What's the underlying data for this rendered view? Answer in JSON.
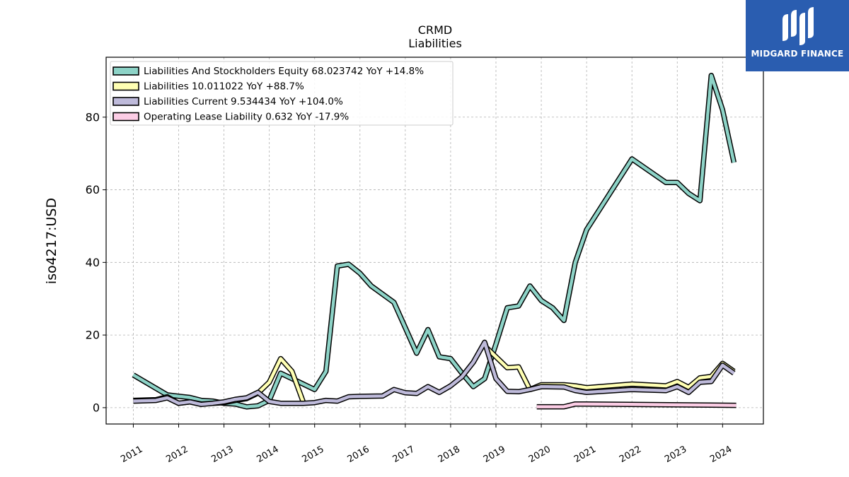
{
  "brand": {
    "name": "MIDGARD FINANCE",
    "color": "#2a5db0"
  },
  "chart_data": {
    "type": "line",
    "title": "CRMD",
    "subtitle": "Liabilities",
    "xlabel": "",
    "ylabel": "iso4217:USD",
    "xlim": [
      2010.4,
      2024.9
    ],
    "ylim": [
      -4.5,
      96.5
    ],
    "yticks": [
      0,
      20,
      40,
      60,
      80
    ],
    "xticks": [
      "2011",
      "2012",
      "2013",
      "2014",
      "2015",
      "2016",
      "2017",
      "2018",
      "2019",
      "2020",
      "2021",
      "2022",
      "2023",
      "2024"
    ],
    "grid": true,
    "legend_position": "top-left",
    "series": [
      {
        "name": "Liabilities And Stockholders Equity",
        "legend": "Liabilities And Stockholders Equity  68.023742 YoY +14.8%",
        "color": "#8dd3c7",
        "x": [
          2011.0,
          2011.75,
          2012.25,
          2012.5,
          2012.75,
          2013.0,
          2013.25,
          2013.5,
          2013.75,
          2014.0,
          2014.25,
          2014.5,
          2014.75,
          2015.0,
          2015.25,
          2015.5,
          2015.75,
          2016.0,
          2016.25,
          2016.75,
          2017.0,
          2017.25,
          2017.5,
          2017.75,
          2018.0,
          2018.25,
          2018.5,
          2018.75,
          2019.0,
          2019.25,
          2019.5,
          2019.75,
          2020.0,
          2020.25,
          2020.5,
          2020.75,
          2021.0,
          2022.0,
          2022.75,
          2023.0,
          2023.25,
          2023.5,
          2023.75,
          2024.0,
          2024.25
        ],
        "y": [
          9.0,
          3.5,
          2.8,
          2.0,
          1.8,
          1.2,
          1.0,
          0.2,
          0.5,
          2.0,
          9.5,
          8.0,
          6.5,
          5.0,
          10.0,
          39.0,
          39.5,
          37.0,
          33.5,
          29.0,
          22.0,
          15.0,
          21.5,
          14.0,
          13.5,
          9.5,
          5.8,
          8.0,
          17.5,
          27.5,
          28.0,
          33.5,
          29.5,
          27.5,
          24.0,
          40.0,
          49.0,
          68.5,
          62.0,
          62.0,
          59.0,
          57.0,
          91.5,
          82.0,
          67.5
        ]
      },
      {
        "name": "Liabilities",
        "legend": "Liabilities  10.011022 YoY +88.7%",
        "color": "#ffffb3",
        "segments": [
          {
            "x": [
              2011.0,
              2011.5,
              2011.75,
              2012.0,
              2012.25,
              2012.5,
              2012.75,
              2013.0,
              2013.25,
              2013.5,
              2013.75,
              2014.0,
              2014.25,
              2014.5,
              2014.75
            ],
            "y": [
              2.0,
              2.2,
              3.0,
              1.2,
              1.6,
              1.0,
              1.2,
              1.4,
              2.0,
              2.5,
              4.0,
              7.0,
              13.5,
              10.0,
              1.5
            ]
          },
          {
            "x": [
              2018.75,
              2019.0,
              2019.25,
              2019.5,
              2019.75
            ],
            "y": [
              17.0,
              14.0,
              11.0,
              11.2,
              5.0
            ]
          },
          {
            "x": [
              2019.75,
              2020.0,
              2020.5,
              2020.75,
              2021.0,
              2022.0,
              2022.75,
              2023.0,
              2023.25,
              2023.5,
              2023.75,
              2024.0,
              2024.25
            ],
            "y": [
              5.0,
              6.3,
              6.3,
              6.0,
              5.5,
              6.5,
              6.0,
              7.2,
              5.6,
              8.2,
              8.6,
              12.2,
              10.0
            ]
          }
        ]
      },
      {
        "name": "Liabilities Current",
        "legend": "Liabilities Current  9.534434 YoY +104.0%",
        "color": "#bebada",
        "x": [
          2011.0,
          2011.5,
          2011.75,
          2012.0,
          2012.25,
          2012.5,
          2012.75,
          2013.0,
          2013.25,
          2013.5,
          2013.75,
          2014.0,
          2014.25,
          2014.5,
          2014.75,
          2015.0,
          2015.25,
          2015.5,
          2015.75,
          2016.0,
          2016.5,
          2016.75,
          2017.0,
          2017.25,
          2017.5,
          2017.75,
          2018.0,
          2018.25,
          2018.5,
          2018.75,
          2019.0,
          2019.25,
          2019.5,
          2019.75,
          2020.0,
          2020.5,
          2020.75,
          2021.0,
          2022.0,
          2022.75,
          2023.0,
          2023.25,
          2023.5,
          2023.75,
          2024.0,
          2024.25
        ],
        "y": [
          1.8,
          2.0,
          2.7,
          1.2,
          1.6,
          0.9,
          1.2,
          1.6,
          2.3,
          2.7,
          4.2,
          1.7,
          1.2,
          1.2,
          1.2,
          1.4,
          2.0,
          1.8,
          3.0,
          3.1,
          3.2,
          5.0,
          4.1,
          3.9,
          5.8,
          4.2,
          6.0,
          8.5,
          12.5,
          18.0,
          8.0,
          4.5,
          4.4,
          5.0,
          5.8,
          5.7,
          4.7,
          4.2,
          5.0,
          4.7,
          5.8,
          4.2,
          7.0,
          7.2,
          11.7,
          9.5
        ]
      },
      {
        "name": "Operating Lease Liability",
        "legend": "Operating Lease Liability  0.632 YoY -17.9%",
        "color": "#fccde5",
        "x": [
          2019.9,
          2020.5,
          2020.75,
          2021.0,
          2024.3
        ],
        "y": [
          0.25,
          0.25,
          1.0,
          1.0,
          0.63
        ]
      }
    ]
  }
}
